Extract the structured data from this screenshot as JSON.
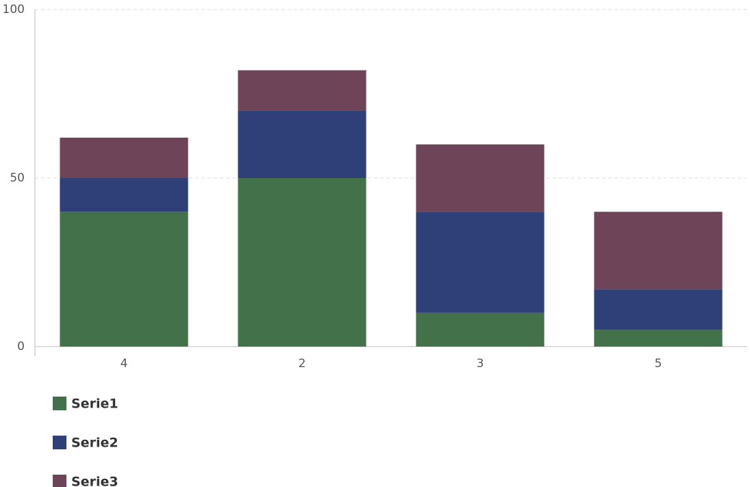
{
  "chart_data": {
    "type": "stacked_bar",
    "categories": [
      "4",
      "2",
      "3",
      "5"
    ],
    "series": [
      {
        "name": "Serie1",
        "color": "#43714a",
        "values": [
          40,
          50,
          10,
          5
        ]
      },
      {
        "name": "Serie2",
        "color": "#2f3f78",
        "values": [
          10,
          20,
          30,
          12
        ]
      },
      {
        "name": "Serie3",
        "color": "#6e4459",
        "values": [
          12,
          12,
          20,
          23
        ]
      }
    ],
    "ylim": [
      0,
      100
    ],
    "yticks": [
      0,
      50,
      100
    ],
    "grid": true,
    "legend": "bottom-left"
  }
}
